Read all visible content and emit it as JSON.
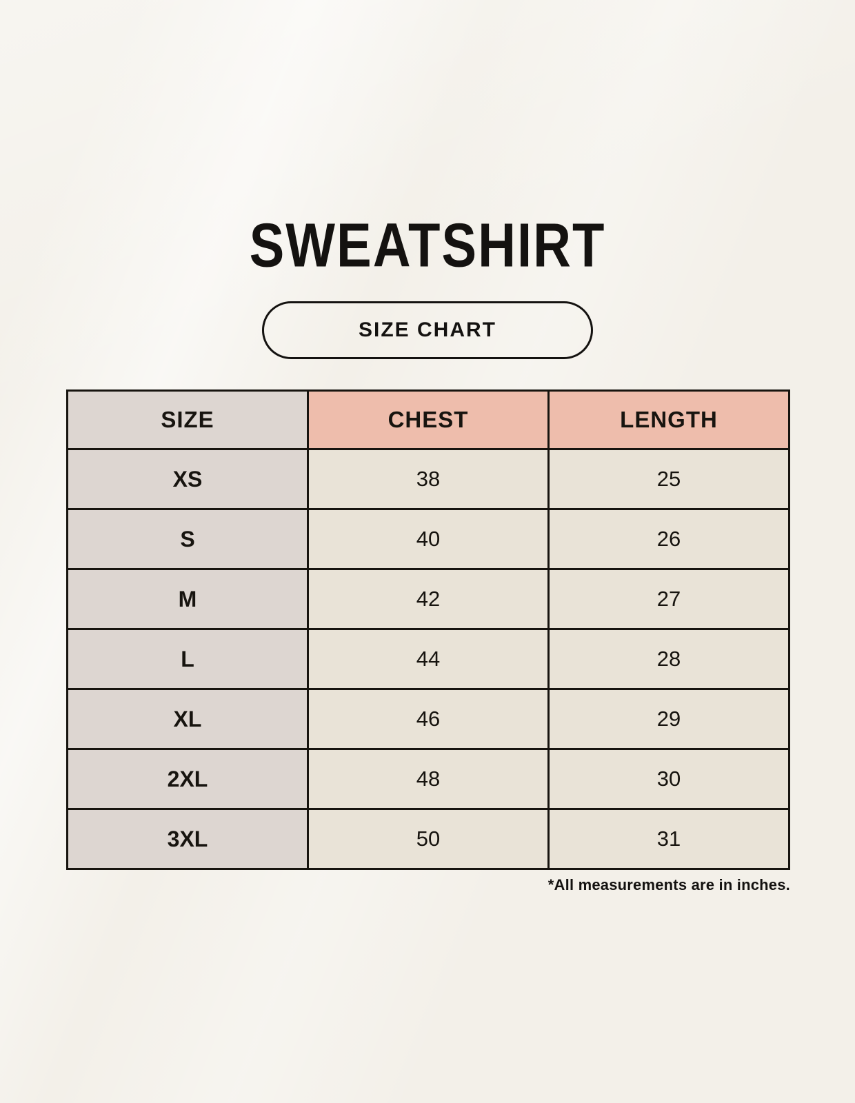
{
  "page": {
    "title": "SWEATSHIRT",
    "badge_label": "SIZE CHART",
    "footnote": "*All measurements are in inches."
  },
  "chart_data": {
    "type": "table",
    "title": "SWEATSHIRT",
    "subtitle": "SIZE CHART",
    "units": "inches",
    "note": "*All measurements are in inches.",
    "columns": [
      "SIZE",
      "CHEST",
      "LENGTH"
    ],
    "rows": [
      {
        "size": "XS",
        "chest": "38",
        "length": "25"
      },
      {
        "size": "S",
        "chest": "40",
        "length": "26"
      },
      {
        "size": "M",
        "chest": "42",
        "length": "27"
      },
      {
        "size": "L",
        "chest": "44",
        "length": "28"
      },
      {
        "size": "XL",
        "chest": "46",
        "length": "29"
      },
      {
        "size": "2XL",
        "chest": "48",
        "length": "30"
      },
      {
        "size": "3XL",
        "chest": "50",
        "length": "31"
      }
    ]
  },
  "colors": {
    "background": "#f3f0e9",
    "header_accent": "#eebdac",
    "size_column": "#ddd6d1",
    "value_cell": "#e9e3d7",
    "border": "#17140f",
    "text": "#141210"
  }
}
